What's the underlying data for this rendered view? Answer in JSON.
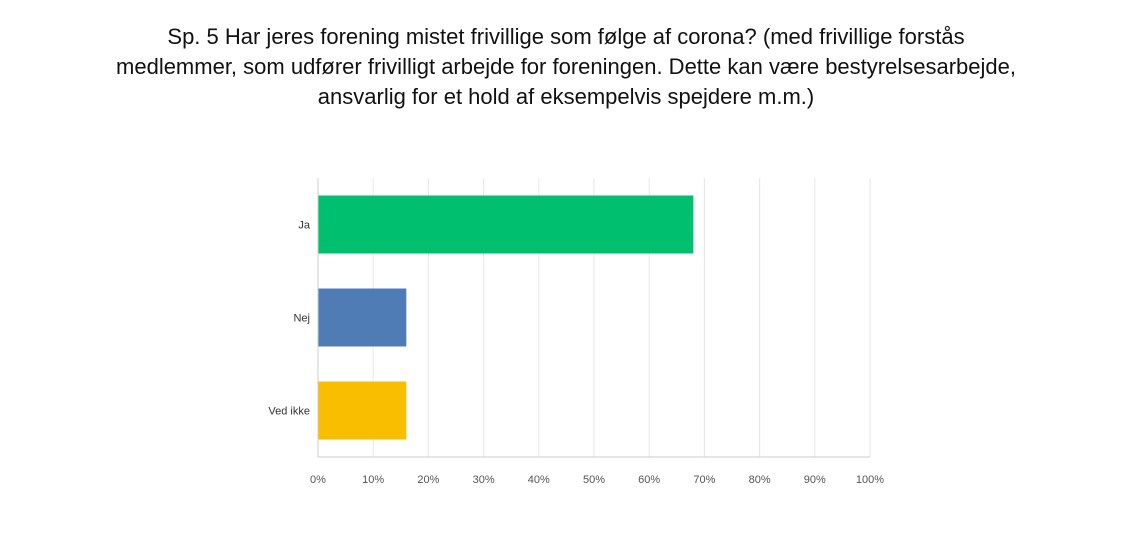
{
  "chart_data": {
    "type": "bar",
    "orientation": "horizontal",
    "title": "Sp. 5 Har jeres forening mistet frivillige som følge af corona? (med frivillige forstås\nmedlemmer, som udfører frivilligt arbejde for foreningen. Dette kan være bestyrelsesarbejde,\nansvarlig for et hold af eksempelvis spejdere m.m.)",
    "categories": [
      "Ja",
      "Nej",
      "Ved ikke"
    ],
    "values": [
      68,
      16,
      16
    ],
    "colors": [
      "#00bf6f",
      "#507cb6",
      "#f9be00"
    ],
    "xlim": [
      0,
      100
    ],
    "x_ticks": [
      "0%",
      "10%",
      "20%",
      "30%",
      "40%",
      "50%",
      "60%",
      "70%",
      "80%",
      "90%",
      "100%"
    ],
    "grid": true
  }
}
